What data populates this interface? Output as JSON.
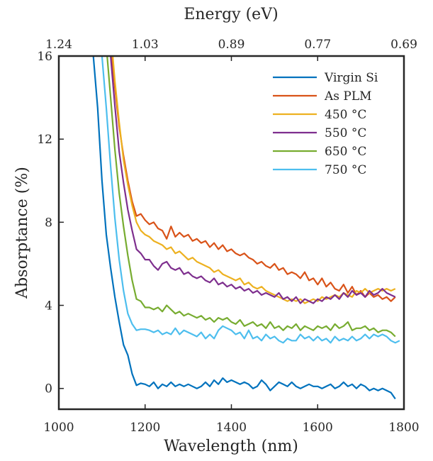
{
  "chart_data": {
    "type": "line",
    "xlabel": "Wavelength (nm)",
    "ylabel": "Absorptance (%)",
    "top_axis_label": "Energy (eV)",
    "xlim": [
      1000,
      1800
    ],
    "ylim": [
      -1,
      16
    ],
    "x_ticks": [
      1000,
      1200,
      1400,
      1600,
      1800
    ],
    "x_tick_labels": [
      "1000",
      "1200",
      "1400",
      "1600",
      "1800"
    ],
    "y_ticks": [
      0,
      4,
      8,
      12,
      16
    ],
    "y_tick_labels": [
      "0",
      "4",
      "8",
      "12",
      "16"
    ],
    "top_ticks": [
      1000,
      1200,
      1400,
      1600,
      1800
    ],
    "top_tick_labels": [
      "1.24",
      "1.03",
      "0.89",
      "0.77",
      "0.69"
    ],
    "legend_position": "top-right",
    "grid": false,
    "series": [
      {
        "name": "Virgin Si",
        "color": "#0072BD",
        "x": [
          1080,
          1090,
          1100,
          1110,
          1120,
          1130,
          1140,
          1150,
          1160,
          1170,
          1180,
          1190,
          1200,
          1210,
          1220,
          1230,
          1240,
          1250,
          1260,
          1270,
          1280,
          1290,
          1300,
          1310,
          1320,
          1330,
          1340,
          1350,
          1360,
          1370,
          1380,
          1390,
          1400,
          1410,
          1420,
          1430,
          1440,
          1450,
          1460,
          1470,
          1480,
          1490,
          1500,
          1510,
          1520,
          1530,
          1540,
          1550,
          1560,
          1570,
          1580,
          1590,
          1600,
          1610,
          1620,
          1630,
          1640,
          1650,
          1660,
          1670,
          1680,
          1690,
          1700,
          1710,
          1720,
          1730,
          1740,
          1750,
          1760,
          1770,
          1780
        ],
        "y": [
          16,
          13.5,
          10,
          7.4,
          5.8,
          4.4,
          3.2,
          2.1,
          1.6,
          0.7,
          0.15,
          0.25,
          0.2,
          0.1,
          0.3,
          0.0,
          0.2,
          0.1,
          0.3,
          0.1,
          0.2,
          0.1,
          0.2,
          0.1,
          0.0,
          0.1,
          0.3,
          0.1,
          0.4,
          0.2,
          0.5,
          0.3,
          0.4,
          0.3,
          0.2,
          0.3,
          0.2,
          0.0,
          0.1,
          0.4,
          0.2,
          -0.1,
          0.1,
          0.3,
          0.2,
          0.1,
          0.3,
          0.1,
          0.0,
          0.1,
          0.2,
          0.1,
          0.1,
          0.0,
          0.1,
          0.2,
          0.0,
          0.1,
          0.3,
          0.1,
          0.2,
          0.0,
          0.2,
          0.1,
          -0.1,
          0.0,
          -0.1,
          0.0,
          -0.1,
          -0.2,
          -0.5
        ]
      },
      {
        "name": "As PLM",
        "color": "#D95319",
        "x": [
          1122,
          1130,
          1140,
          1150,
          1160,
          1170,
          1180,
          1190,
          1200,
          1210,
          1220,
          1230,
          1240,
          1250,
          1260,
          1270,
          1280,
          1290,
          1300,
          1310,
          1320,
          1330,
          1340,
          1350,
          1360,
          1370,
          1380,
          1390,
          1400,
          1410,
          1420,
          1430,
          1440,
          1450,
          1460,
          1470,
          1480,
          1490,
          1500,
          1510,
          1520,
          1530,
          1540,
          1550,
          1560,
          1570,
          1580,
          1590,
          1600,
          1610,
          1620,
          1630,
          1640,
          1650,
          1660,
          1670,
          1680,
          1690,
          1700,
          1710,
          1720,
          1730,
          1740,
          1750,
          1760,
          1770,
          1780
        ],
        "y": [
          16,
          14.5,
          12.6,
          11.2,
          10.0,
          9.0,
          8.3,
          8.4,
          8.1,
          7.9,
          8.0,
          7.7,
          7.6,
          7.2,
          7.8,
          7.3,
          7.5,
          7.3,
          7.4,
          7.1,
          7.2,
          7.0,
          7.1,
          6.8,
          7.0,
          6.7,
          6.9,
          6.6,
          6.7,
          6.5,
          6.4,
          6.5,
          6.3,
          6.2,
          6.0,
          6.1,
          5.9,
          5.8,
          6.0,
          5.7,
          5.8,
          5.5,
          5.6,
          5.5,
          5.3,
          5.6,
          5.2,
          5.3,
          5.0,
          5.3,
          4.9,
          5.1,
          4.8,
          4.7,
          5.0,
          4.6,
          4.9,
          4.5,
          4.7,
          4.4,
          4.6,
          4.4,
          4.5,
          4.3,
          4.4,
          4.2,
          4.4
        ]
      },
      {
        "name": "450 °C",
        "color": "#EDB120",
        "x": [
          1125,
          1130,
          1140,
          1150,
          1160,
          1170,
          1180,
          1190,
          1200,
          1210,
          1220,
          1230,
          1240,
          1250,
          1260,
          1270,
          1280,
          1290,
          1300,
          1310,
          1320,
          1330,
          1340,
          1350,
          1360,
          1370,
          1380,
          1390,
          1400,
          1410,
          1420,
          1430,
          1440,
          1450,
          1460,
          1470,
          1480,
          1490,
          1500,
          1510,
          1520,
          1530,
          1540,
          1550,
          1560,
          1570,
          1580,
          1590,
          1600,
          1610,
          1620,
          1630,
          1640,
          1650,
          1660,
          1670,
          1680,
          1690,
          1700,
          1710,
          1720,
          1730,
          1740,
          1750,
          1760,
          1770,
          1780
        ],
        "y": [
          16,
          14.8,
          12.8,
          11.0,
          9.8,
          8.8,
          8.0,
          7.6,
          7.4,
          7.3,
          7.1,
          7.0,
          6.9,
          6.7,
          6.8,
          6.5,
          6.6,
          6.4,
          6.2,
          6.3,
          6.1,
          6.0,
          5.9,
          5.8,
          5.6,
          5.7,
          5.5,
          5.4,
          5.3,
          5.2,
          5.3,
          5.0,
          5.1,
          4.9,
          4.8,
          4.9,
          4.7,
          4.6,
          4.5,
          4.4,
          4.3,
          4.2,
          4.3,
          4.2,
          4.3,
          4.1,
          4.2,
          4.3,
          4.2,
          4.4,
          4.3,
          4.4,
          4.5,
          4.4,
          4.6,
          4.5,
          4.4,
          4.7,
          4.6,
          4.8,
          4.6,
          4.7,
          4.8,
          4.7,
          4.8,
          4.7,
          4.8
        ]
      },
      {
        "name": "550 °C",
        "color": "#7E2F8E",
        "x": [
          1120,
          1130,
          1140,
          1150,
          1160,
          1170,
          1180,
          1190,
          1200,
          1210,
          1220,
          1230,
          1240,
          1250,
          1260,
          1270,
          1280,
          1290,
          1300,
          1310,
          1320,
          1330,
          1340,
          1350,
          1360,
          1370,
          1380,
          1390,
          1400,
          1410,
          1420,
          1430,
          1440,
          1450,
          1460,
          1470,
          1480,
          1490,
          1500,
          1510,
          1520,
          1530,
          1540,
          1550,
          1560,
          1570,
          1580,
          1590,
          1600,
          1610,
          1620,
          1630,
          1640,
          1650,
          1660,
          1670,
          1680,
          1690,
          1700,
          1710,
          1720,
          1730,
          1740,
          1750,
          1760,
          1770,
          1780
        ],
        "y": [
          16,
          13.6,
          11.4,
          9.9,
          8.6,
          7.6,
          6.7,
          6.5,
          6.2,
          6.2,
          5.9,
          5.7,
          6.0,
          6.1,
          5.8,
          5.7,
          5.8,
          5.5,
          5.6,
          5.4,
          5.3,
          5.4,
          5.2,
          5.1,
          5.3,
          5.0,
          5.1,
          4.9,
          5.0,
          4.8,
          4.9,
          4.7,
          4.8,
          4.6,
          4.7,
          4.5,
          4.6,
          4.5,
          4.4,
          4.6,
          4.3,
          4.4,
          4.2,
          4.4,
          4.1,
          4.3,
          4.2,
          4.1,
          4.3,
          4.2,
          4.4,
          4.3,
          4.5,
          4.3,
          4.6,
          4.4,
          4.7,
          4.5,
          4.6,
          4.4,
          4.7,
          4.5,
          4.6,
          4.8,
          4.6,
          4.5,
          4.4
        ]
      },
      {
        "name": "650 °C",
        "color": "#77AC30",
        "x": [
          1112,
          1120,
          1130,
          1140,
          1150,
          1160,
          1170,
          1180,
          1190,
          1200,
          1210,
          1220,
          1230,
          1240,
          1250,
          1260,
          1270,
          1280,
          1290,
          1300,
          1310,
          1320,
          1330,
          1340,
          1350,
          1360,
          1370,
          1380,
          1390,
          1400,
          1410,
          1420,
          1430,
          1440,
          1450,
          1460,
          1470,
          1480,
          1490,
          1500,
          1510,
          1520,
          1530,
          1540,
          1550,
          1560,
          1570,
          1580,
          1590,
          1600,
          1610,
          1620,
          1630,
          1640,
          1650,
          1660,
          1670,
          1680,
          1690,
          1700,
          1710,
          1720,
          1730,
          1740,
          1750,
          1760,
          1770,
          1780
        ],
        "y": [
          16,
          14.0,
          11.5,
          9.4,
          7.8,
          6.4,
          5.2,
          4.3,
          4.2,
          3.9,
          3.9,
          3.8,
          3.9,
          3.7,
          4.0,
          3.8,
          3.6,
          3.7,
          3.5,
          3.6,
          3.5,
          3.4,
          3.5,
          3.3,
          3.4,
          3.2,
          3.4,
          3.3,
          3.4,
          3.2,
          3.1,
          3.3,
          3.0,
          3.1,
          3.2,
          3.0,
          3.1,
          2.9,
          3.2,
          2.9,
          3.0,
          2.8,
          3.0,
          2.9,
          3.1,
          2.8,
          3.0,
          2.9,
          2.8,
          3.0,
          2.9,
          3.0,
          2.8,
          3.1,
          2.9,
          3.0,
          3.2,
          2.8,
          2.9,
          2.9,
          3.0,
          2.8,
          2.9,
          2.7,
          2.8,
          2.8,
          2.7,
          2.5
        ]
      },
      {
        "name": "750 °C",
        "color": "#4DBEEE",
        "x": [
          1100,
          1110,
          1120,
          1130,
          1140,
          1150,
          1160,
          1170,
          1180,
          1190,
          1200,
          1210,
          1220,
          1230,
          1240,
          1250,
          1260,
          1270,
          1280,
          1290,
          1300,
          1310,
          1320,
          1330,
          1340,
          1350,
          1360,
          1370,
          1380,
          1390,
          1400,
          1410,
          1420,
          1430,
          1440,
          1450,
          1460,
          1470,
          1480,
          1490,
          1500,
          1510,
          1520,
          1530,
          1540,
          1550,
          1560,
          1570,
          1580,
          1590,
          1600,
          1610,
          1620,
          1630,
          1640,
          1650,
          1660,
          1670,
          1680,
          1690,
          1700,
          1710,
          1720,
          1730,
          1740,
          1750,
          1760,
          1770,
          1780,
          1790
        ],
        "y": [
          16,
          13.5,
          10.7,
          8.2,
          6.2,
          4.7,
          3.6,
          3.1,
          2.8,
          2.85,
          2.85,
          2.8,
          2.7,
          2.8,
          2.6,
          2.7,
          2.6,
          2.9,
          2.6,
          2.8,
          2.7,
          2.6,
          2.5,
          2.7,
          2.4,
          2.6,
          2.4,
          2.8,
          3.0,
          2.9,
          2.8,
          2.6,
          2.7,
          2.4,
          2.8,
          2.4,
          2.5,
          2.3,
          2.6,
          2.4,
          2.5,
          2.3,
          2.2,
          2.4,
          2.3,
          2.3,
          2.6,
          2.4,
          2.5,
          2.3,
          2.5,
          2.3,
          2.4,
          2.2,
          2.5,
          2.3,
          2.4,
          2.3,
          2.5,
          2.3,
          2.4,
          2.6,
          2.4,
          2.6,
          2.5,
          2.6,
          2.5,
          2.3,
          2.2,
          2.3
        ]
      }
    ]
  }
}
